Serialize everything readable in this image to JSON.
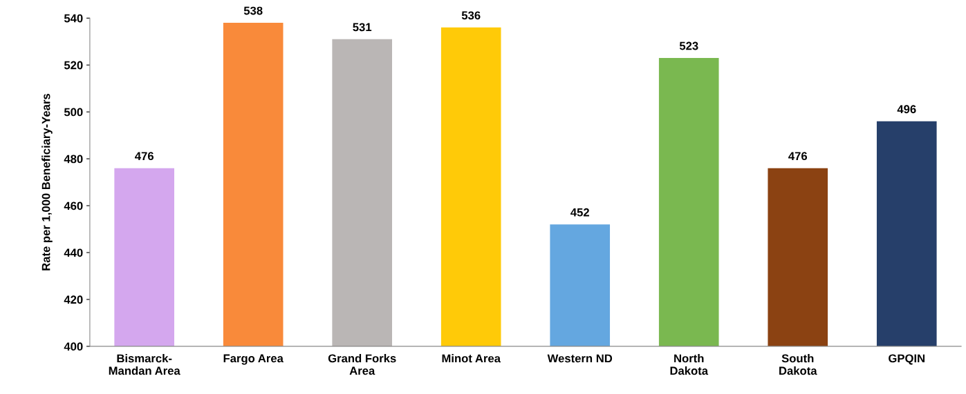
{
  "chart_data": {
    "type": "bar",
    "ylabel": "Rate per 1,000 Beneficiary-Years",
    "categories": [
      "Bismarck-\nMandan Area",
      "Fargo Area",
      "Grand Forks\nArea",
      "Minot Area",
      "Western ND",
      "North\nDakota",
      "South\nDakota",
      "GPQIN"
    ],
    "values": [
      476,
      538,
      531,
      536,
      452,
      523,
      476,
      496
    ],
    "colors": [
      "#d4a7ee",
      "#f98a3a",
      "#bab6b5",
      "#ffca08",
      "#64a7e0",
      "#7ab850",
      "#8b4212",
      "#263f6a"
    ],
    "ylim": [
      400,
      540
    ],
    "yticks": [
      400,
      420,
      440,
      460,
      480,
      500,
      520,
      540
    ],
    "data_labels": true,
    "grid": false,
    "legend": false
  }
}
